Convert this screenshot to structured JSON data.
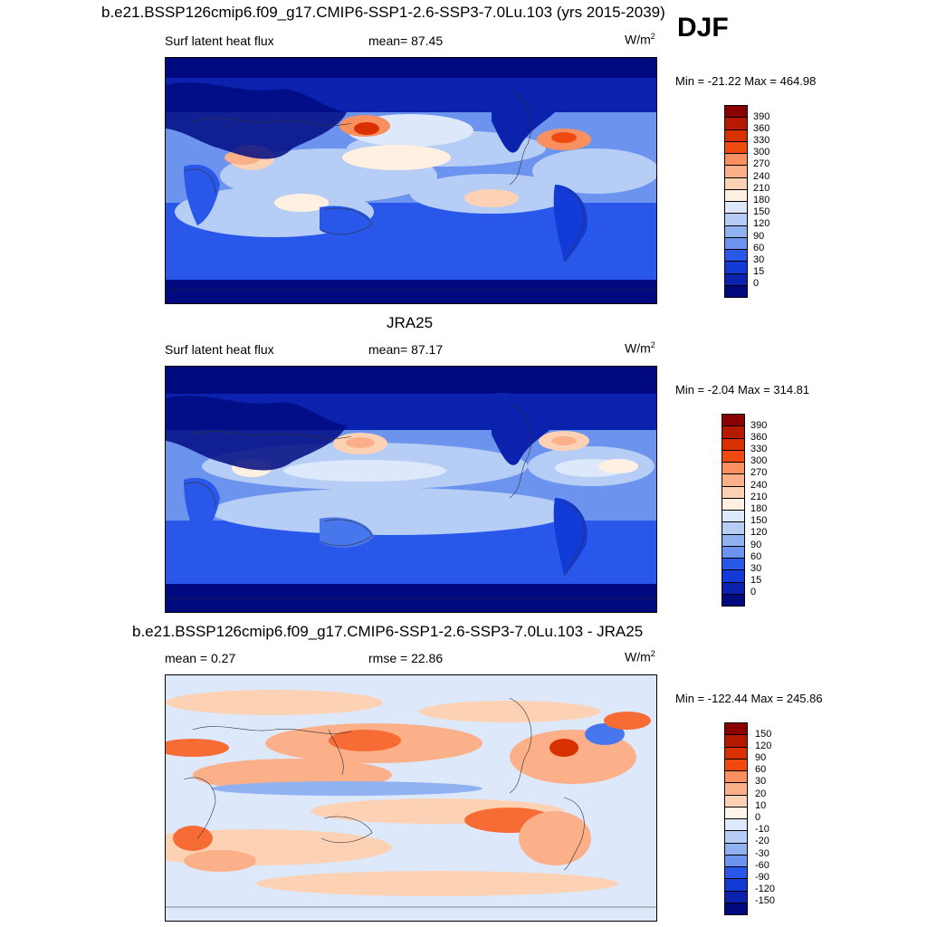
{
  "season": "DJF",
  "units_main": "W/m",
  "units_sup": "2",
  "panels": [
    {
      "id": "model",
      "title": "b.e21.BSSP126cmip6.f09_g17.CMIP6-SSP1-2.6-SSP3-7.0Lu.103 (yrs 2015-2039)",
      "left_label": "Surf latent heat flux",
      "mid_label": "mean=  87.45",
      "minmax": "Min = -21.22 Max = 464.98",
      "colorbar": {
        "colors": [
          "#8b0000",
          "#b51a00",
          "#d93000",
          "#f04a10",
          "#f76c35",
          "#fa9060",
          "#fcb08a",
          "#fdd2b4",
          "#fff0e1",
          "#dde9fb",
          "#b6cdf5",
          "#90b2f0",
          "#6c94ee",
          "#4876ed",
          "#2857ea",
          "#123ad6",
          "#0a22ad",
          "#000a80"
        ],
        "labels": [
          "390",
          "360",
          "330",
          "300",
          "270",
          "240",
          "210",
          "180",
          "150",
          "120",
          "90",
          "60",
          "30",
          "15",
          "0"
        ]
      }
    },
    {
      "id": "obs",
      "title": "JRA25",
      "left_label": "Surf latent heat flux",
      "mid_label": "mean=  87.17",
      "minmax": "Min =  -2.04 Max = 314.81",
      "colorbar": {
        "colors": [
          "#8b0000",
          "#b51a00",
          "#d93000",
          "#f04a10",
          "#f76c35",
          "#fa9060",
          "#fcb08a",
          "#fdd2b4",
          "#fff0e1",
          "#dde9fb",
          "#b6cdf5",
          "#90b2f0",
          "#6c94ee",
          "#4876ed",
          "#2857ea",
          "#123ad6",
          "#0a22ad",
          "#000a80"
        ],
        "labels": [
          "390",
          "360",
          "330",
          "300",
          "270",
          "240",
          "210",
          "180",
          "150",
          "120",
          "90",
          "60",
          "30",
          "15",
          "0"
        ]
      }
    },
    {
      "id": "diff",
      "title": "b.e21.BSSP126cmip6.f09_g17.CMIP6-SSP1-2.6-SSP3-7.0Lu.103 - JRA25",
      "left_label": "mean =   0.27",
      "mid_label": "rmse =  22.86",
      "minmax": "Min = -122.44 Max = 245.86",
      "colorbar": {
        "colors": [
          "#8b0000",
          "#b51a00",
          "#d93000",
          "#f04a10",
          "#f76c35",
          "#fa9060",
          "#fcb08a",
          "#fdd2b4",
          "#fff4ea",
          "#dde9fb",
          "#b6cdf5",
          "#90b2f0",
          "#6c94ee",
          "#4876ed",
          "#2857ea",
          "#123ad6",
          "#0a22ad",
          "#000a80"
        ],
        "labels": [
          "150",
          "120",
          "90",
          "60",
          "30",
          "20",
          "10",
          "0",
          "-10",
          "-20",
          "-30",
          "-60",
          "-90",
          "-120",
          "-150"
        ]
      }
    }
  ]
}
